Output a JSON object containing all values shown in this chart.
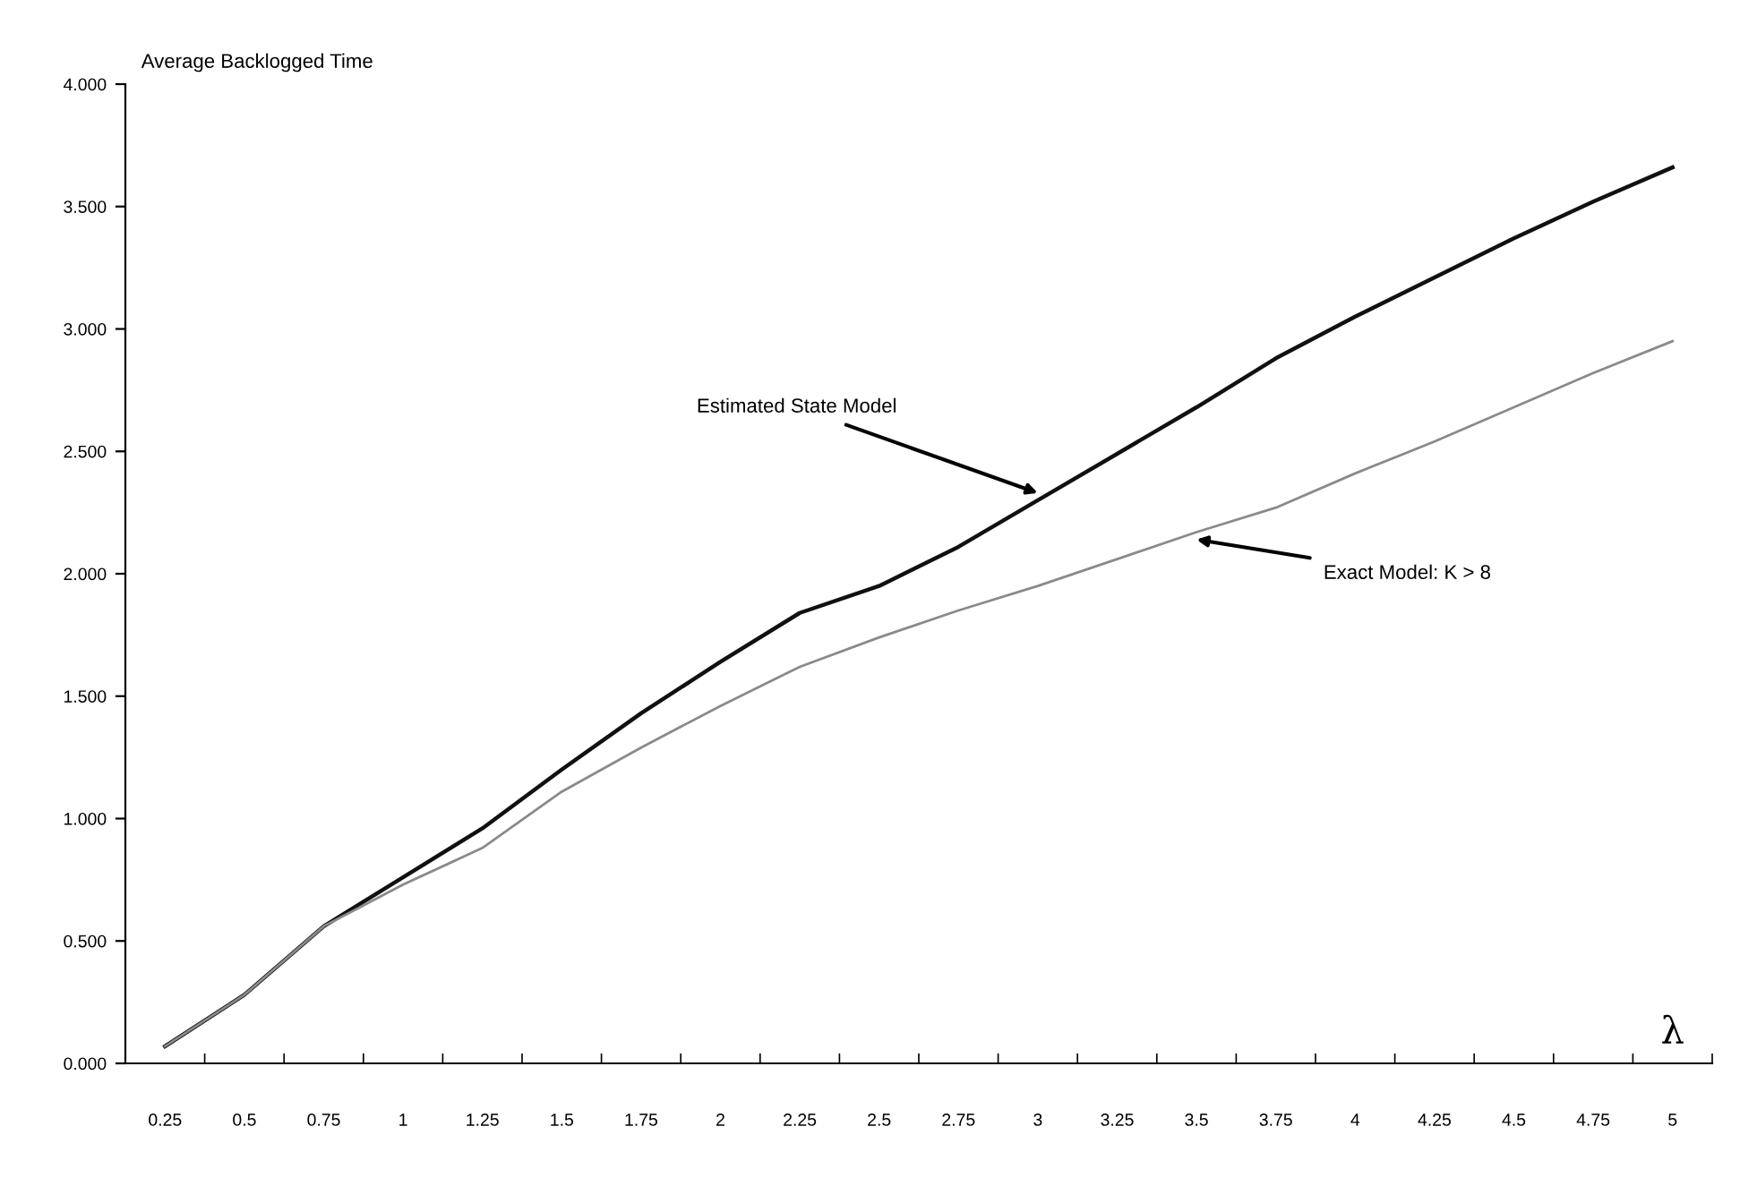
{
  "chart_data": {
    "type": "line",
    "ylabel": "Average Backlogged Time",
    "xlabel": "λ",
    "categories": [
      "0.25",
      "0.5",
      "0.75",
      "1",
      "1.25",
      "1.5",
      "1.75",
      "2",
      "2.25",
      "2.5",
      "2.75",
      "3",
      "3.25",
      "3.5",
      "3.75",
      "4",
      "4.25",
      "4.5",
      "4.75",
      "5"
    ],
    "series": [
      {
        "color": "#111111",
        "values": [
          0.07,
          0.28,
          0.56,
          0.76,
          0.96,
          1.2,
          1.43,
          1.64,
          1.84,
          1.95,
          2.11,
          2.3,
          2.49,
          2.68,
          2.88,
          3.05,
          3.21,
          3.37,
          3.52,
          3.66
        ]
      },
      {
        "color": "#8a8a8a",
        "values": [
          0.07,
          0.28,
          0.56,
          0.73,
          0.88,
          1.11,
          1.29,
          1.46,
          1.62,
          1.74,
          1.85,
          1.95,
          2.06,
          2.17,
          2.27,
          2.41,
          2.54,
          2.68,
          2.82,
          2.95
        ]
      }
    ],
    "ylim": [
      0,
      4
    ],
    "yticks": [
      {
        "value": 0,
        "label": "0.000"
      },
      {
        "value": 0.5,
        "label": "0.500"
      },
      {
        "value": 1,
        "label": "1.000"
      },
      {
        "value": 1.5,
        "label": "1.500"
      },
      {
        "value": 2,
        "label": "2.000"
      },
      {
        "value": 2.5,
        "label": "2.500"
      },
      {
        "value": 3,
        "label": "3.000"
      },
      {
        "value": 3.5,
        "label": "3.500"
      },
      {
        "value": 4,
        "label": "4.000"
      }
    ],
    "annotations": [
      {
        "text": "Estimated State Model",
        "x": "3",
        "y": 2.33
      },
      {
        "text": "Exact Model: K > 8",
        "x": "3.5",
        "y": 2.14
      }
    ],
    "grid": false,
    "legend": false
  }
}
